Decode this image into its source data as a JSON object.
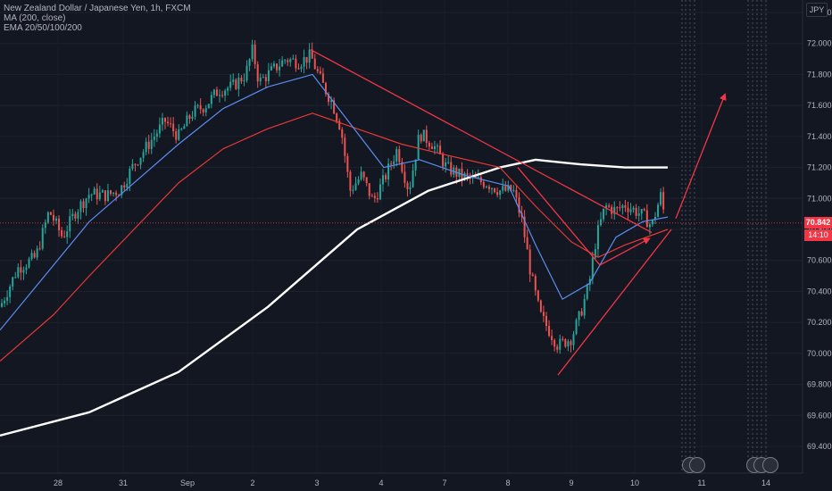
{
  "header": {
    "symbol_line": "New Zealand Dollar / Japanese Yen, 1h, FXCM",
    "ma_line": "MA (200, close)",
    "ema_line": "EMA 20/50/100/200",
    "currency_button": "JPY"
  },
  "price_tags": {
    "last_price": "70.842",
    "countdown": "14:10"
  },
  "colors": {
    "background": "#131722",
    "up": "#26a69a",
    "down": "#ef5350",
    "ma200": "#ffffff",
    "ema_red": "#e53935",
    "ema_blue": "#5b8def",
    "drawing": "#f23645",
    "price_tag": "#f23645"
  },
  "chart_data": {
    "type": "candlestick",
    "ylim": [
      69.3,
      72.2
    ],
    "yticks": [
      "72.200",
      "72.000",
      "71.800",
      "71.600",
      "71.400",
      "71.200",
      "71.000",
      "70.800",
      "70.600",
      "70.400",
      "70.200",
      "70.000",
      "69.800",
      "69.600",
      "69.400"
    ],
    "x_ticks": [
      "28",
      "31",
      "Sep",
      "2",
      "3",
      "4",
      "7",
      "8",
      "9",
      "10",
      "11",
      "14"
    ],
    "close_path": [
      {
        "t": 0,
        "p": 70.3
      },
      {
        "t": 20,
        "p": 70.55
      },
      {
        "t": 40,
        "p": 70.62
      },
      {
        "t": 55,
        "p": 70.92
      },
      {
        "t": 70,
        "p": 70.75
      },
      {
        "t": 85,
        "p": 70.92
      },
      {
        "t": 100,
        "p": 71.03
      },
      {
        "t": 120,
        "p": 71.02
      },
      {
        "t": 135,
        "p": 71.06
      },
      {
        "t": 150,
        "p": 71.22
      },
      {
        "t": 170,
        "p": 71.38
      },
      {
        "t": 185,
        "p": 71.5
      },
      {
        "t": 200,
        "p": 71.4
      },
      {
        "t": 215,
        "p": 71.55
      },
      {
        "t": 230,
        "p": 71.6
      },
      {
        "t": 245,
        "p": 71.7
      },
      {
        "t": 260,
        "p": 71.72
      },
      {
        "t": 275,
        "p": 71.8
      },
      {
        "t": 283,
        "p": 71.96
      },
      {
        "t": 290,
        "p": 71.75
      },
      {
        "t": 300,
        "p": 71.8
      },
      {
        "t": 310,
        "p": 71.85
      },
      {
        "t": 320,
        "p": 71.9
      },
      {
        "t": 335,
        "p": 71.88
      },
      {
        "t": 348,
        "p": 71.92
      },
      {
        "t": 360,
        "p": 71.75
      },
      {
        "t": 372,
        "p": 71.62
      },
      {
        "t": 382,
        "p": 71.45
      },
      {
        "t": 392,
        "p": 71.05
      },
      {
        "t": 405,
        "p": 71.15
      },
      {
        "t": 418,
        "p": 70.98
      },
      {
        "t": 430,
        "p": 71.12
      },
      {
        "t": 445,
        "p": 71.32
      },
      {
        "t": 458,
        "p": 71.05
      },
      {
        "t": 470,
        "p": 71.42
      },
      {
        "t": 485,
        "p": 71.35
      },
      {
        "t": 500,
        "p": 71.2
      },
      {
        "t": 515,
        "p": 71.15
      },
      {
        "t": 530,
        "p": 71.12
      },
      {
        "t": 545,
        "p": 71.1
      },
      {
        "t": 560,
        "p": 71.05
      },
      {
        "t": 575,
        "p": 71.05
      },
      {
        "t": 585,
        "p": 70.85
      },
      {
        "t": 595,
        "p": 70.5
      },
      {
        "t": 605,
        "p": 70.25
      },
      {
        "t": 615,
        "p": 70.15
      },
      {
        "t": 625,
        "p": 70.05
      },
      {
        "t": 640,
        "p": 70.1
      },
      {
        "t": 650,
        "p": 70.25
      },
      {
        "t": 660,
        "p": 70.45
      },
      {
        "t": 668,
        "p": 70.75
      },
      {
        "t": 678,
        "p": 70.95
      },
      {
        "t": 690,
        "p": 70.92
      },
      {
        "t": 700,
        "p": 70.96
      },
      {
        "t": 712,
        "p": 70.92
      },
      {
        "t": 722,
        "p": 70.88
      },
      {
        "t": 730,
        "p": 70.82
      },
      {
        "t": 740,
        "p": 71.02
      },
      {
        "t": 746,
        "p": 70.84
      }
    ],
    "series": [
      {
        "name": "MA (200, close)",
        "color": "#ffffff",
        "points": [
          {
            "t": 0,
            "p": 69.47
          },
          {
            "t": 100,
            "p": 69.62
          },
          {
            "t": 200,
            "p": 69.88
          },
          {
            "t": 300,
            "p": 70.3
          },
          {
            "t": 400,
            "p": 70.8
          },
          {
            "t": 480,
            "p": 71.05
          },
          {
            "t": 560,
            "p": 71.2
          },
          {
            "t": 600,
            "p": 71.25
          },
          {
            "t": 650,
            "p": 71.22
          },
          {
            "t": 700,
            "p": 71.2
          },
          {
            "t": 748,
            "p": 71.2
          }
        ]
      },
      {
        "name": "",
        "color": "#e53935",
        "points": [
          {
            "t": 0,
            "p": 69.95
          },
          {
            "t": 60,
            "p": 70.25
          },
          {
            "t": 100,
            "p": 70.5
          },
          {
            "t": 150,
            "p": 70.8
          },
          {
            "t": 200,
            "p": 71.1
          },
          {
            "t": 250,
            "p": 71.32
          },
          {
            "t": 300,
            "p": 71.45
          },
          {
            "t": 350,
            "p": 71.55
          },
          {
            "t": 400,
            "p": 71.45
          },
          {
            "t": 450,
            "p": 71.35
          },
          {
            "t": 500,
            "p": 71.28
          },
          {
            "t": 560,
            "p": 71.2
          },
          {
            "t": 600,
            "p": 70.95
          },
          {
            "t": 640,
            "p": 70.72
          },
          {
            "t": 670,
            "p": 70.62
          },
          {
            "t": 700,
            "p": 70.7
          },
          {
            "t": 748,
            "p": 70.8
          }
        ]
      },
      {
        "name": "",
        "color": "#5b8def",
        "points": [
          {
            "t": 0,
            "p": 70.15
          },
          {
            "t": 50,
            "p": 70.5
          },
          {
            "t": 100,
            "p": 70.85
          },
          {
            "t": 150,
            "p": 71.1
          },
          {
            "t": 200,
            "p": 71.35
          },
          {
            "t": 250,
            "p": 71.58
          },
          {
            "t": 300,
            "p": 71.72
          },
          {
            "t": 350,
            "p": 71.8
          },
          {
            "t": 390,
            "p": 71.5
          },
          {
            "t": 430,
            "p": 71.2
          },
          {
            "t": 470,
            "p": 71.25
          },
          {
            "t": 520,
            "p": 71.15
          },
          {
            "t": 570,
            "p": 71.08
          },
          {
            "t": 600,
            "p": 70.7
          },
          {
            "t": 630,
            "p": 70.35
          },
          {
            "t": 660,
            "p": 70.45
          },
          {
            "t": 690,
            "p": 70.75
          },
          {
            "t": 720,
            "p": 70.85
          },
          {
            "t": 748,
            "p": 70.88
          }
        ]
      }
    ],
    "drawings": [
      {
        "kind": "line",
        "from": {
          "t": 348,
          "p": 71.96
        },
        "to": {
          "t": 730,
          "p": 70.78
        }
      },
      {
        "kind": "line",
        "from": {
          "t": 625,
          "p": 69.86
        },
        "to": {
          "t": 752,
          "p": 70.8
        }
      },
      {
        "kind": "line",
        "from": {
          "t": 580,
          "p": 71.2
        },
        "to": {
          "t": 672,
          "p": 70.57
        }
      },
      {
        "kind": "arrow",
        "from": {
          "t": 672,
          "p": 70.57
        },
        "to": {
          "t": 727,
          "p": 70.74
        }
      },
      {
        "kind": "arrow",
        "from": {
          "t": 757,
          "p": 70.87
        },
        "to": {
          "t": 812,
          "p": 71.67
        }
      }
    ]
  }
}
